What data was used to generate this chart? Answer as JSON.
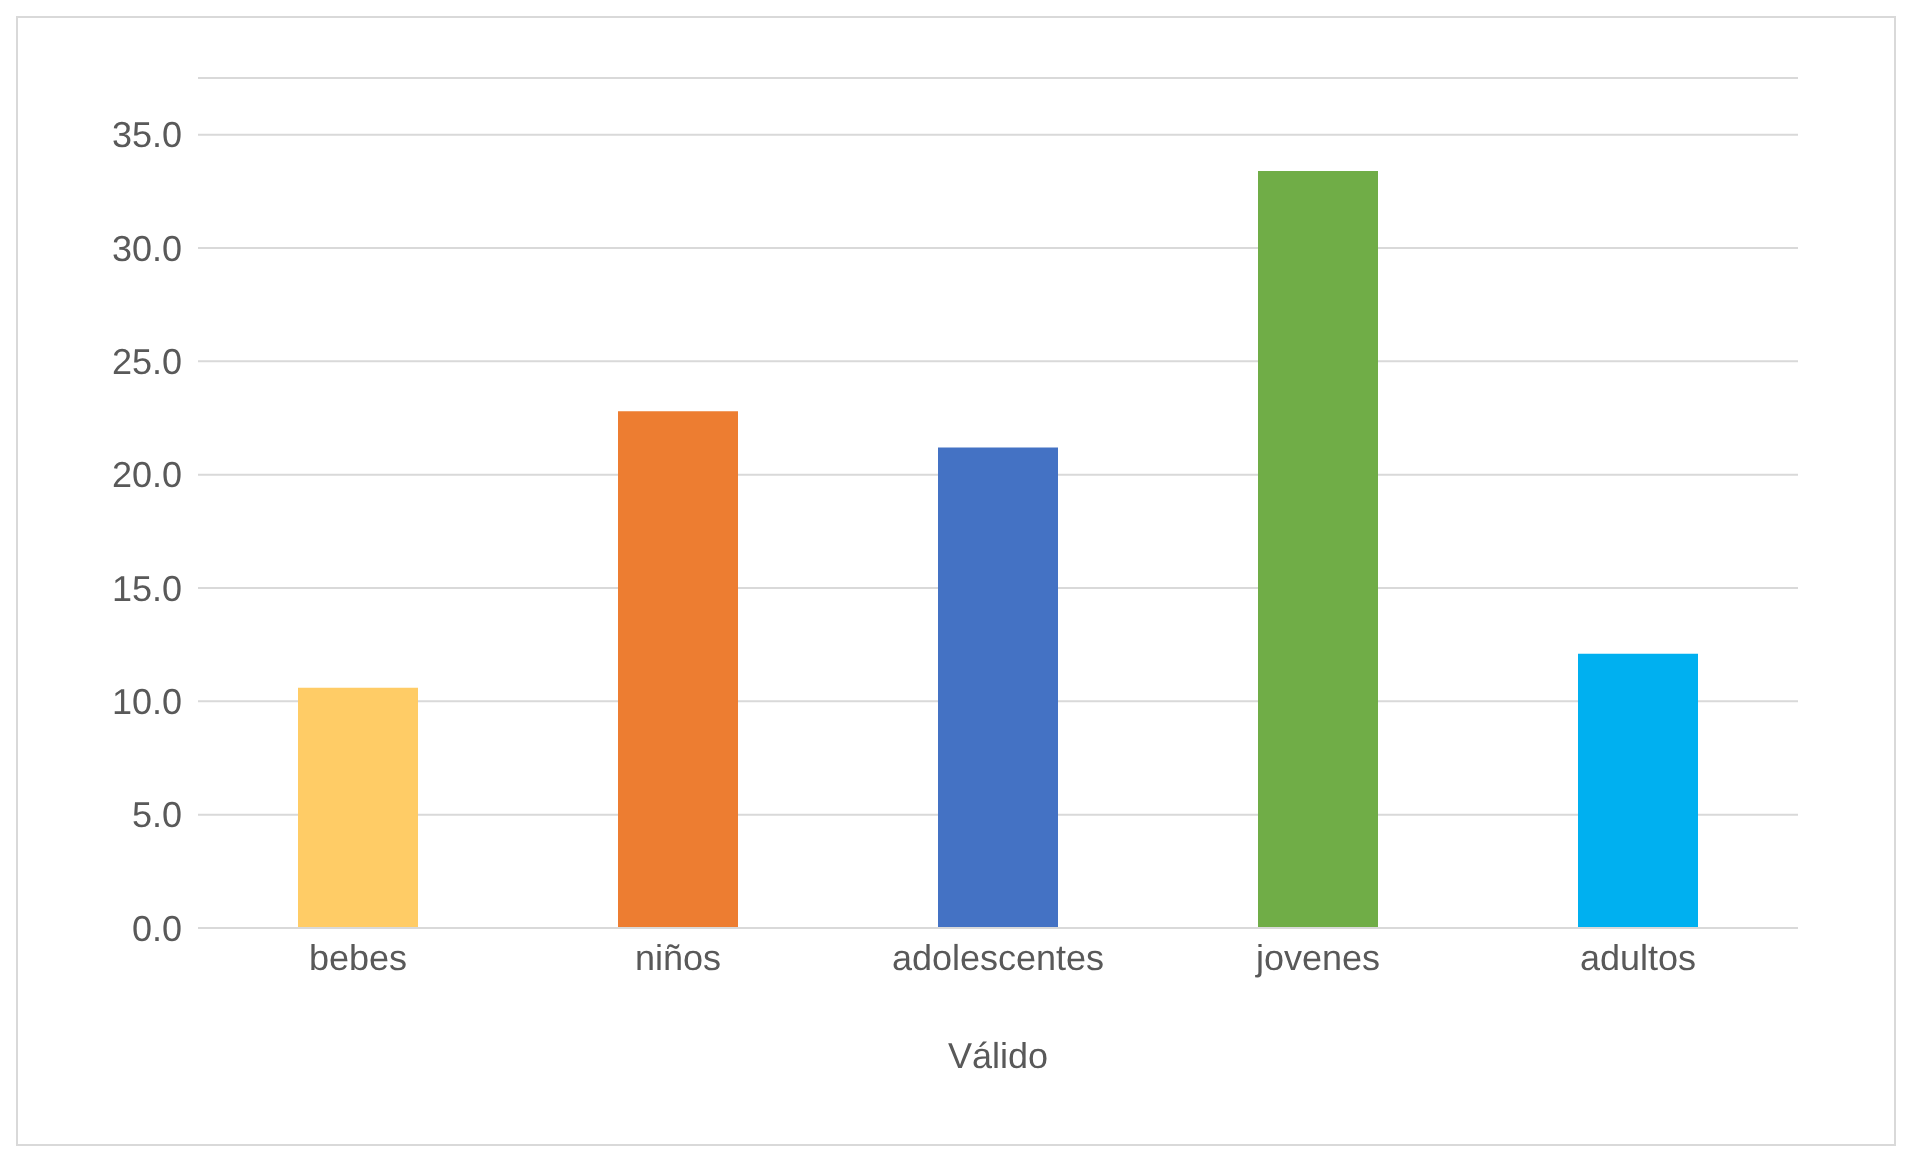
{
  "chart_data": {
    "type": "bar",
    "xlabel": "Válido",
    "categories": [
      "bebes",
      "niños",
      "adolescentes",
      "jovenes",
      "adultos"
    ],
    "values": [
      10.6,
      22.8,
      21.2,
      33.4,
      12.1
    ],
    "colors": [
      "#ffcc66",
      "#ed7d31",
      "#4472c4",
      "#70ad47",
      "#00b0f0"
    ],
    "ylim": [
      0,
      37.5
    ],
    "yticks": [
      {
        "value": 0,
        "label": "0.0"
      },
      {
        "value": 5,
        "label": "5.0"
      },
      {
        "value": 10,
        "label": "10.0"
      },
      {
        "value": 15,
        "label": "15.0"
      },
      {
        "value": 20,
        "label": "20.0"
      },
      {
        "value": 25,
        "label": "25.0"
      },
      {
        "value": 30,
        "label": "30.0"
      },
      {
        "value": 35,
        "label": "35.0"
      }
    ],
    "grid": "y"
  }
}
